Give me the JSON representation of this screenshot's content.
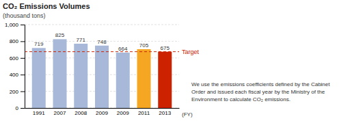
{
  "chart_data": {
    "type": "bar",
    "title": "CO₂ Emissions Volumes",
    "subtitle": "(thousand tons)",
    "categories": [
      "1991",
      "2007",
      "2008",
      "2009",
      "2009",
      "2011",
      "2013"
    ],
    "values": [
      719,
      825,
      771,
      748,
      664,
      705,
      675
    ],
    "colors": [
      "#a8b8d8",
      "#a8b8d8",
      "#a8b8d8",
      "#a8b8d8",
      "#a8b8d8",
      "#f5a623",
      "#cc2200"
    ],
    "xlabel": "(FY)",
    "ylim": [
      0,
      1000
    ],
    "yticks": [
      0,
      200,
      400,
      600,
      800,
      {
        "value": 1000,
        "label": "1,000"
      }
    ],
    "grid": true,
    "data_labels": true,
    "reference_line": {
      "value": 675,
      "label": "Target",
      "color": "#cc2200"
    },
    "annotation": [
      "We use the emissions coefficients defined by the Cabinet",
      "Order and issued each fiscal year by the Ministry of the",
      "Environment to calculate CO₂ emissions."
    ]
  }
}
